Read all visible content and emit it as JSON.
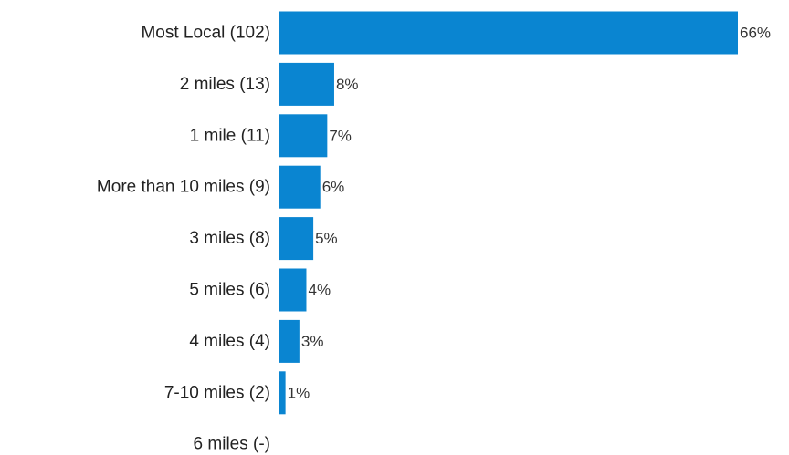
{
  "chart_data": {
    "type": "bar",
    "orientation": "horizontal",
    "title": "",
    "xlabel": "",
    "ylabel": "",
    "grid": false,
    "legend": "none",
    "bar_color": "#0a85d1",
    "xlim": [
      0,
      66
    ],
    "categories": [
      "Most Local (102)",
      "2 miles (13)",
      "1 mile (11)",
      "More than 10 miles (9)",
      "3 miles (8)",
      "5 miles (6)",
      "4 miles (4)",
      "7-10 miles (2)",
      "6 miles (-)"
    ],
    "values": [
      66,
      8,
      7,
      6,
      5,
      4,
      3,
      1,
      null
    ],
    "value_labels": [
      "66%",
      "8%",
      "7%",
      "6%",
      "5%",
      "4%",
      "3%",
      "1%",
      ""
    ]
  }
}
